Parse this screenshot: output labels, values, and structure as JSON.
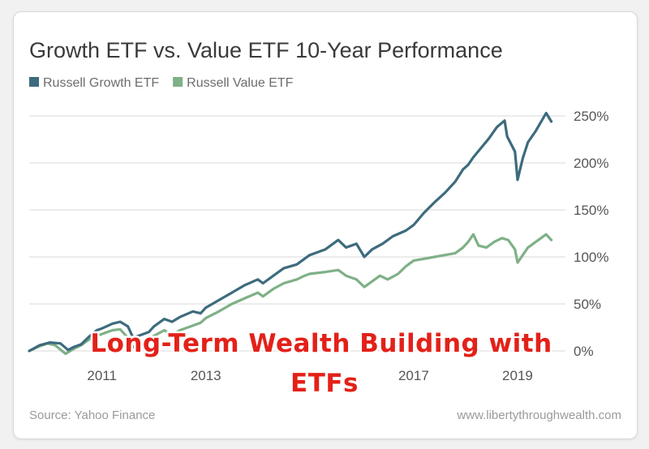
{
  "chart_data": {
    "type": "line",
    "title": "Growth ETF vs. Value ETF 10-Year Performance",
    "xlabel": "",
    "ylabel": "",
    "xlim": [
      2009.6,
      2019.75
    ],
    "ylim": [
      0,
      250
    ],
    "x_ticks": [
      {
        "label": "2011",
        "value": 2011
      },
      {
        "label": "2013",
        "value": 2013
      },
      {
        "label": "2017",
        "value": 2017
      },
      {
        "label": "2019",
        "value": 2019
      }
    ],
    "y_ticks": [
      {
        "label": "0%",
        "value": 0
      },
      {
        "label": "50%",
        "value": 50
      },
      {
        "label": "100%",
        "value": 100
      },
      {
        "label": "150%",
        "value": 150
      },
      {
        "label": "200%",
        "value": 200
      },
      {
        "label": "250%",
        "value": 250
      }
    ],
    "grid": true,
    "legend_position": "top-left",
    "series": [
      {
        "name": "Russell Growth ETF",
        "color": "#3d6b7d",
        "points": [
          [
            2009.6,
            0
          ],
          [
            2009.8,
            6
          ],
          [
            2010.0,
            9
          ],
          [
            2010.2,
            8
          ],
          [
            2010.35,
            1
          ],
          [
            2010.45,
            4
          ],
          [
            2010.6,
            7
          ],
          [
            2010.75,
            15
          ],
          [
            2010.9,
            22
          ],
          [
            2011.0,
            24
          ],
          [
            2011.2,
            29
          ],
          [
            2011.35,
            31
          ],
          [
            2011.5,
            26
          ],
          [
            2011.6,
            14
          ],
          [
            2011.75,
            17
          ],
          [
            2011.9,
            20
          ],
          [
            2012.0,
            26
          ],
          [
            2012.2,
            34
          ],
          [
            2012.35,
            31
          ],
          [
            2012.5,
            36
          ],
          [
            2012.75,
            42
          ],
          [
            2012.9,
            40
          ],
          [
            2013.0,
            46
          ],
          [
            2013.25,
            54
          ],
          [
            2013.5,
            62
          ],
          [
            2013.75,
            70
          ],
          [
            2014.0,
            76
          ],
          [
            2014.1,
            72
          ],
          [
            2014.3,
            80
          ],
          [
            2014.5,
            88
          ],
          [
            2014.75,
            92
          ],
          [
            2014.9,
            98
          ],
          [
            2015.0,
            102
          ],
          [
            2015.3,
            108
          ],
          [
            2015.55,
            118
          ],
          [
            2015.7,
            110
          ],
          [
            2015.9,
            114
          ],
          [
            2016.05,
            100
          ],
          [
            2016.2,
            108
          ],
          [
            2016.4,
            114
          ],
          [
            2016.6,
            122
          ],
          [
            2016.85,
            128
          ],
          [
            2017.0,
            134
          ],
          [
            2017.2,
            147
          ],
          [
            2017.4,
            158
          ],
          [
            2017.6,
            168
          ],
          [
            2017.8,
            180
          ],
          [
            2017.95,
            193
          ],
          [
            2018.05,
            198
          ],
          [
            2018.15,
            206
          ],
          [
            2018.3,
            216
          ],
          [
            2018.45,
            226
          ],
          [
            2018.6,
            238
          ],
          [
            2018.75,
            245
          ],
          [
            2018.8,
            228
          ],
          [
            2018.95,
            212
          ],
          [
            2019.0,
            182
          ],
          [
            2019.1,
            205
          ],
          [
            2019.2,
            222
          ],
          [
            2019.35,
            234
          ],
          [
            2019.55,
            253
          ],
          [
            2019.65,
            244
          ]
        ]
      },
      {
        "name": "Russell Value ETF",
        "color": "#7fb087",
        "points": [
          [
            2009.6,
            0
          ],
          [
            2009.8,
            5
          ],
          [
            2009.95,
            8
          ],
          [
            2010.1,
            6
          ],
          [
            2010.3,
            -3
          ],
          [
            2010.45,
            2
          ],
          [
            2010.6,
            6
          ],
          [
            2010.75,
            12
          ],
          [
            2010.9,
            16
          ],
          [
            2011.0,
            18
          ],
          [
            2011.2,
            22
          ],
          [
            2011.35,
            23
          ],
          [
            2011.5,
            14
          ],
          [
            2011.6,
            4
          ],
          [
            2011.75,
            8
          ],
          [
            2011.9,
            12
          ],
          [
            2012.0,
            16
          ],
          [
            2012.2,
            22
          ],
          [
            2012.35,
            17
          ],
          [
            2012.5,
            22
          ],
          [
            2012.75,
            27
          ],
          [
            2012.9,
            30
          ],
          [
            2013.0,
            35
          ],
          [
            2013.25,
            42
          ],
          [
            2013.5,
            50
          ],
          [
            2013.75,
            56
          ],
          [
            2014.0,
            62
          ],
          [
            2014.1,
            58
          ],
          [
            2014.3,
            66
          ],
          [
            2014.5,
            72
          ],
          [
            2014.75,
            76
          ],
          [
            2014.9,
            80
          ],
          [
            2015.0,
            82
          ],
          [
            2015.3,
            84
          ],
          [
            2015.55,
            86
          ],
          [
            2015.7,
            80
          ],
          [
            2015.9,
            76
          ],
          [
            2016.05,
            68
          ],
          [
            2016.2,
            74
          ],
          [
            2016.35,
            80
          ],
          [
            2016.5,
            76
          ],
          [
            2016.7,
            82
          ],
          [
            2016.85,
            90
          ],
          [
            2017.0,
            96
          ],
          [
            2017.2,
            98
          ],
          [
            2017.4,
            100
          ],
          [
            2017.6,
            102
          ],
          [
            2017.8,
            104
          ],
          [
            2017.95,
            110
          ],
          [
            2018.05,
            116
          ],
          [
            2018.15,
            124
          ],
          [
            2018.25,
            112
          ],
          [
            2018.4,
            110
          ],
          [
            2018.55,
            116
          ],
          [
            2018.7,
            120
          ],
          [
            2018.82,
            118
          ],
          [
            2018.95,
            108
          ],
          [
            2019.0,
            94
          ],
          [
            2019.1,
            102
          ],
          [
            2019.2,
            110
          ],
          [
            2019.35,
            116
          ],
          [
            2019.55,
            124
          ],
          [
            2019.65,
            118
          ]
        ]
      }
    ]
  },
  "footer": {
    "source": "Source: Yahoo Finance",
    "site": "www.libertythroughwealth.com"
  },
  "overlay": {
    "line1": "Long-Term Wealth Building with",
    "line2": "ETFs"
  }
}
